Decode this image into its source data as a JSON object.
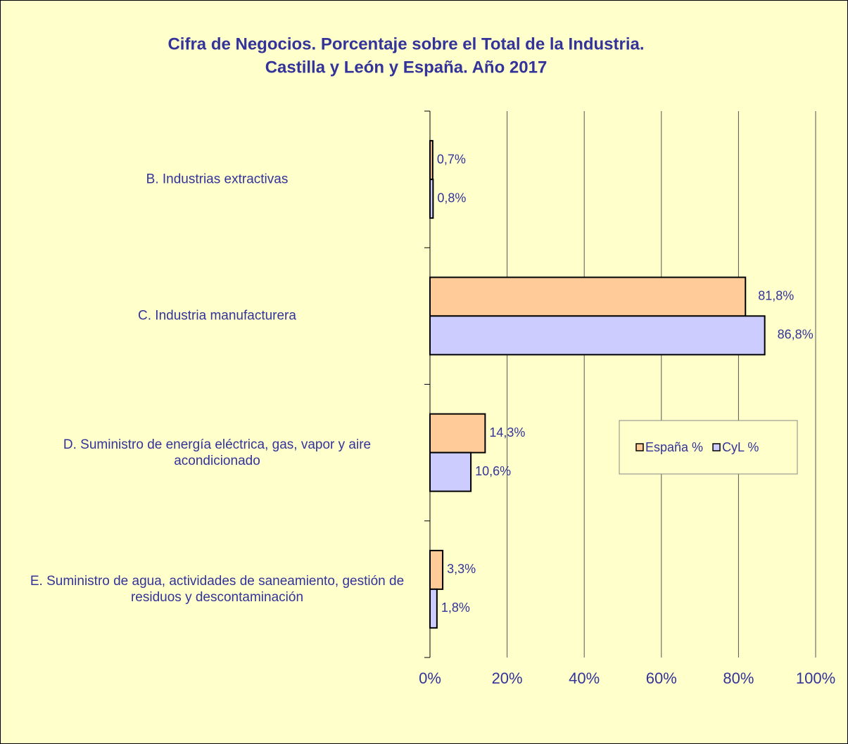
{
  "chart_data": {
    "type": "hbar",
    "title": [
      "Cifra de Negocios. Porcentaje sobre el Total de la Industria.",
      "Castilla y León y España.  Año 2017"
    ],
    "categories": [
      "B. Industrias extractivas",
      "C. Industria manufacturera",
      "D. Suministro de energía eléctrica, gas, vapor y aire acondicionado",
      "E. Suministro de agua, actividades de saneamiento, gestión de residuos y descontaminación"
    ],
    "series": [
      {
        "name": "España %",
        "color": "#ffcc99",
        "values": [
          0.7,
          81.8,
          14.3,
          3.3
        ],
        "value_labels": [
          "0,7%",
          "81,8%",
          "14,3%",
          "3,3%"
        ]
      },
      {
        "name": "CyL %",
        "color": "#ccccff",
        "values": [
          0.8,
          86.8,
          10.6,
          1.8
        ],
        "value_labels": [
          "0,8%",
          "86,8%",
          "10,6%",
          "1,8%"
        ]
      }
    ],
    "xlim": [
      0,
      100
    ],
    "xticks": [
      {
        "value": 0,
        "label": "0%"
      },
      {
        "value": 20,
        "label": "20%"
      },
      {
        "value": 40,
        "label": "40%"
      },
      {
        "value": 60,
        "label": "60%"
      },
      {
        "value": 80,
        "label": "80%"
      },
      {
        "value": 100,
        "label": "100%"
      }
    ],
    "grid": true
  }
}
